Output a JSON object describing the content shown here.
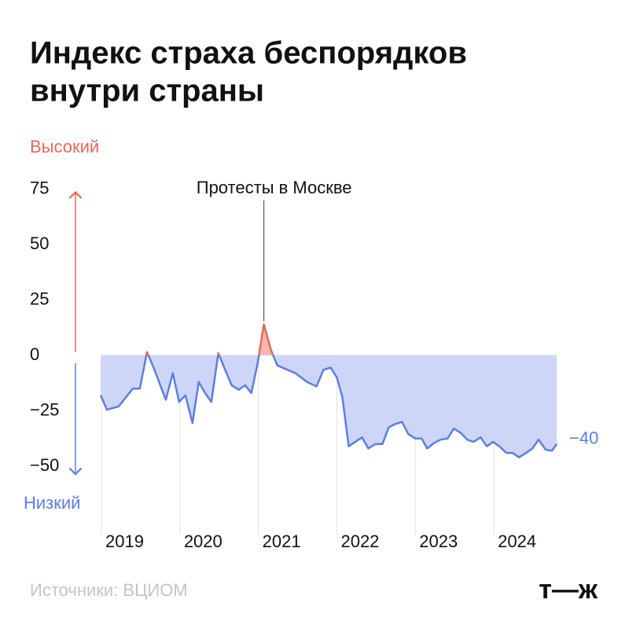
{
  "chart_data": {
    "type": "line",
    "title": [
      "Индекс страха беспорядков",
      "внутри страны"
    ],
    "high_label": "Высокий",
    "low_label": "Низкий",
    "source": "Источники: ВЦИОМ",
    "logo": "т—ж",
    "annotation": {
      "text": "Протесты в Москве",
      "x": 2021.07,
      "y": 14
    },
    "end_label": {
      "value": -40,
      "label": "−40"
    },
    "x": [
      2018.99,
      2019.07,
      2019.22,
      2019.4,
      2019.49,
      2019.58,
      2019.67,
      2019.82,
      2019.91,
      2019.99,
      2020.07,
      2020.16,
      2020.24,
      2020.32,
      2020.4,
      2020.49,
      2020.57,
      2020.66,
      2020.75,
      2020.83,
      2020.91,
      2020.99,
      2021.07,
      2021.16,
      2021.24,
      2021.47,
      2021.62,
      2021.74,
      2021.83,
      2021.92,
      2022.0,
      2022.07,
      2022.15,
      2022.32,
      2022.4,
      2022.49,
      2022.58,
      2022.66,
      2022.74,
      2022.83,
      2022.91,
      2023.0,
      2023.08,
      2023.15,
      2023.24,
      2023.32,
      2023.41,
      2023.49,
      2023.58,
      2023.66,
      2023.74,
      2023.83,
      2023.91,
      2023.99,
      2024.07,
      2024.16,
      2024.24,
      2024.32,
      2024.41,
      2024.49,
      2024.57,
      2024.66,
      2024.74,
      2024.8
    ],
    "series": [
      {
        "name": "Индекс",
        "color": "#5b7ee0",
        "color_high": "#e8685a",
        "values": [
          -18,
          -24.5,
          -23,
          -15,
          -15,
          1.5,
          -6,
          -20,
          -8,
          -21,
          -18,
          -30.5,
          -12,
          -17,
          -21,
          1,
          -6,
          -13.5,
          -15.5,
          -13.5,
          -17,
          -3.5,
          14,
          2.5,
          -4.5,
          -8,
          -12,
          -14,
          -6.5,
          -5.5,
          -10,
          -19,
          -41,
          -37,
          -42,
          -40,
          -40,
          -32.5,
          -31,
          -30,
          -35.5,
          -37.5,
          -37.5,
          -42,
          -39.5,
          -38,
          -37.5,
          -33,
          -35,
          -38,
          -39,
          -37,
          -41,
          -39,
          -41,
          -44,
          -44,
          -46,
          -44,
          -42,
          -38,
          -42.5,
          -43,
          -40
        ]
      }
    ],
    "xlim": [
      2018.99,
      2024.8
    ],
    "xticks": [
      2019,
      2020,
      2021,
      2022,
      2023,
      2024
    ],
    "ylim": [
      -50,
      75
    ],
    "yticks": [
      75,
      50,
      25,
      0,
      {
        "value": -25,
        "label": "−25"
      },
      {
        "value": -50,
        "label": "−50"
      }
    ]
  }
}
